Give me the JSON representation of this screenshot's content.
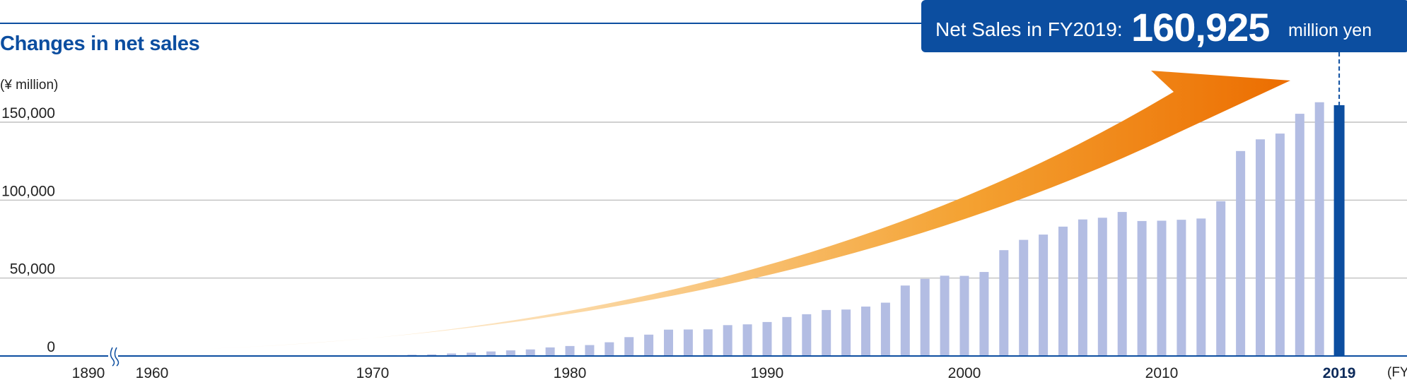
{
  "title": "Changes in net sales",
  "unit_label": "(¥ million)",
  "callout": {
    "label": "Net Sales in FY2019:",
    "value": "160,925",
    "unit": "million yen"
  },
  "colors": {
    "title": "#0c4ea0",
    "bar": "#b3bde3",
    "highlight_bar": "#0c4ea0",
    "axis": "#0c4ea0",
    "gridline": "#b5b5b5",
    "arrow_start": "#fdf1e2",
    "arrow_end": "#ec6d00"
  },
  "chart_data": {
    "type": "bar",
    "title": "Changes in net sales",
    "ylabel": "(¥ million)",
    "xlabel": "(FY",
    "ylim": [
      0,
      150000
    ],
    "y_ticks": [
      "0",
      "50,000",
      "100,000",
      "150,000"
    ],
    "y_tick_values": [
      0,
      50000,
      100000,
      150000
    ],
    "x_tick_labels": [
      "1890",
      "1960",
      "1970",
      "1980",
      "1990",
      "2000",
      "2010",
      "2019"
    ],
    "axis_break": "between 1890 and 1960",
    "grid": true,
    "x": [
      1970,
      1971,
      1972,
      1973,
      1974,
      1975,
      1976,
      1977,
      1978,
      1979,
      1980,
      1981,
      1982,
      1983,
      1984,
      1985,
      1986,
      1987,
      1988,
      1989,
      1990,
      1991,
      1992,
      1993,
      1994,
      1995,
      1996,
      1997,
      1998,
      1999,
      2000,
      2001,
      2002,
      2003,
      2004,
      2005,
      2006,
      2007,
      2008,
      2009,
      2010,
      2011,
      2012,
      2013,
      2014,
      2015,
      2016,
      2017,
      2018,
      2019
    ],
    "values": [
      300,
      500,
      800,
      1000,
      1600,
      2100,
      2900,
      3600,
      4200,
      5500,
      6400,
      7000,
      8800,
      12100,
      13700,
      16900,
      17000,
      17100,
      19800,
      20300,
      21800,
      25000,
      26800,
      29500,
      29800,
      31700,
      34200,
      45200,
      49500,
      51500,
      51400,
      53900,
      67900,
      74500,
      77900,
      83000,
      87600,
      88700,
      92400,
      86600,
      86800,
      87400,
      88200,
      99300,
      131500,
      139000,
      142700,
      155400,
      162800,
      160925
    ],
    "highlight": {
      "x": 2019,
      "value": 160925
    }
  }
}
